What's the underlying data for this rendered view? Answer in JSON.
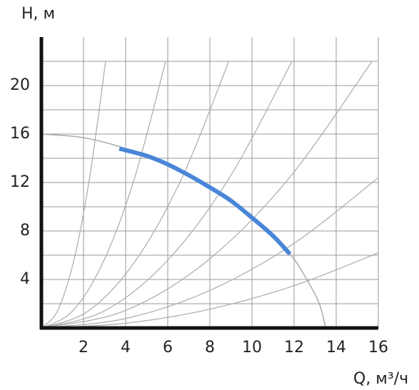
{
  "chart_data": {
    "type": "line",
    "y_label": "H, м",
    "x_label": "Q, м³/ч",
    "xlim": [
      0,
      16
    ],
    "ylim": [
      0,
      24
    ],
    "xticks": [
      2,
      4,
      6,
      8,
      10,
      12,
      14,
      16
    ],
    "yticks": [
      4,
      8,
      12,
      16,
      20
    ],
    "ygrid_minor": [
      2,
      6,
      10,
      14,
      18,
      22
    ],
    "grid": true,
    "series": [
      {
        "color": "#aaaaaa",
        "width": 1.2,
        "x": [
          0,
          0.76,
          1.53,
          2.29,
          3.05
        ],
        "values": [
          0,
          1.4,
          5.5,
          12.4,
          22
        ]
      },
      {
        "color": "#aaaaaa",
        "width": 1.2,
        "x": [
          0,
          1.48,
          2.95,
          4.43,
          5.9
        ],
        "values": [
          0,
          1.4,
          5.5,
          12.4,
          22
        ]
      },
      {
        "color": "#aaaaaa",
        "width": 1.2,
        "x": [
          0,
          2.23,
          4.45,
          6.68,
          8.9
        ],
        "values": [
          0,
          1.4,
          5.5,
          12.4,
          22
        ]
      },
      {
        "color": "#aaaaaa",
        "width": 1.2,
        "x": [
          0,
          2.98,
          5.95,
          8.93,
          11.9
        ],
        "values": [
          0,
          1.4,
          5.5,
          12.4,
          22
        ]
      },
      {
        "color": "#aaaaaa",
        "width": 1.2,
        "x": [
          0,
          3.93,
          7.85,
          11.78,
          15.7
        ],
        "values": [
          0,
          1.4,
          5.5,
          12.4,
          22
        ]
      },
      {
        "color": "#aaaaaa",
        "width": 1.2,
        "x": [
          0,
          4,
          8,
          12,
          16
        ],
        "values": [
          0,
          0.78,
          3.1,
          6.98,
          12.4
        ]
      },
      {
        "color": "#aaaaaa",
        "width": 1.2,
        "x": [
          0,
          4,
          8,
          12,
          16
        ],
        "values": [
          0,
          0.39,
          1.55,
          3.49,
          6.2
        ]
      },
      {
        "color": "#aaaaaa",
        "width": 1.5,
        "x": [
          0,
          2,
          4,
          6,
          8,
          10,
          11.8,
          12.6,
          13.2,
          13.5
        ],
        "values": [
          16,
          15.7,
          14.8,
          13.4,
          11.6,
          9.2,
          6.1,
          4,
          2,
          0
        ]
      },
      {
        "color": "#4a86d8",
        "width": 6,
        "x": [
          3.7,
          5,
          6,
          7,
          8,
          9,
          10,
          11,
          11.8
        ],
        "values": [
          14.8,
          14.2,
          13.5,
          12.6,
          11.6,
          10.5,
          9.1,
          7.6,
          6.1
        ]
      }
    ]
  }
}
